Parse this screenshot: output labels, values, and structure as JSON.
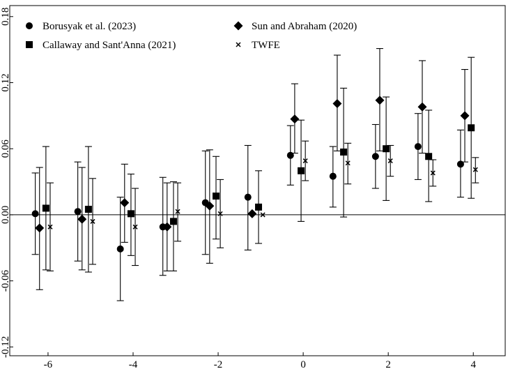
{
  "chart_data": {
    "type": "scatter",
    "title": "",
    "xlabel": "",
    "ylabel": "",
    "x_ticks": [
      -6,
      -4,
      -2,
      0,
      2,
      4
    ],
    "x_tick_labels": [
      "-6",
      "-4",
      "-2",
      "0",
      "2",
      "4"
    ],
    "y_ticks": [
      -0.12,
      -0.06,
      0.0,
      0.06,
      0.12,
      0.18
    ],
    "y_tick_labels": [
      "-0.12",
      "-0.06",
      "0.00",
      "0.06",
      "0.12",
      "0.18"
    ],
    "xlim": [
      -6.9,
      4.75
    ],
    "ylim": [
      -0.128,
      0.19
    ],
    "zero_line": true,
    "grid": false,
    "legend_position": "top",
    "series": [
      {
        "name": "Borusyak et al. (2023)",
        "marker": "circle",
        "offset": -0.3,
        "points": [
          {
            "x": -6,
            "y": 0.001,
            "lo": -0.036,
            "hi": 0.038
          },
          {
            "x": -5,
            "y": 0.003,
            "lo": -0.042,
            "hi": 0.048
          },
          {
            "x": -4,
            "y": -0.031,
            "lo": -0.078,
            "hi": 0.016
          },
          {
            "x": -3,
            "y": -0.011,
            "lo": -0.055,
            "hi": 0.034
          },
          {
            "x": -2,
            "y": 0.011,
            "lo": -0.036,
            "hi": 0.058
          },
          {
            "x": -1,
            "y": 0.016,
            "lo": -0.032,
            "hi": 0.063
          },
          {
            "x": 0,
            "y": 0.054,
            "lo": 0.027,
            "hi": 0.081
          },
          {
            "x": 1,
            "y": 0.035,
            "lo": 0.007,
            "hi": 0.062
          },
          {
            "x": 2,
            "y": 0.053,
            "lo": 0.024,
            "hi": 0.082
          },
          {
            "x": 3,
            "y": 0.062,
            "lo": 0.032,
            "hi": 0.092
          },
          {
            "x": 4,
            "y": 0.046,
            "lo": 0.016,
            "hi": 0.077
          }
        ]
      },
      {
        "name": "Sun and Abraham (2020)",
        "marker": "diamond",
        "offset": -0.2,
        "points": [
          {
            "x": -6,
            "y": -0.012,
            "lo": -0.068,
            "hi": 0.043
          },
          {
            "x": -5,
            "y": -0.004,
            "lo": -0.05,
            "hi": 0.043
          },
          {
            "x": -4,
            "y": 0.011,
            "lo": -0.025,
            "hi": 0.046
          },
          {
            "x": -3,
            "y": -0.011,
            "lo": -0.051,
            "hi": 0.029
          },
          {
            "x": -2,
            "y": 0.008,
            "lo": -0.044,
            "hi": 0.059
          },
          {
            "x": -1,
            "y": 0.001,
            "lo": null,
            "hi": null
          },
          {
            "x": 0,
            "y": 0.087,
            "lo": 0.056,
            "hi": 0.119
          },
          {
            "x": 1,
            "y": 0.101,
            "lo": 0.058,
            "hi": 0.145
          },
          {
            "x": 2,
            "y": 0.104,
            "lo": 0.058,
            "hi": 0.151
          },
          {
            "x": 3,
            "y": 0.098,
            "lo": 0.056,
            "hi": 0.14
          },
          {
            "x": 4,
            "y": 0.09,
            "lo": 0.048,
            "hi": 0.132
          }
        ]
      },
      {
        "name": "Callaway and Sant'Anna (2021)",
        "marker": "square",
        "offset": -0.05,
        "points": [
          {
            "x": -6,
            "y": 0.006,
            "lo": -0.05,
            "hi": 0.062
          },
          {
            "x": -5,
            "y": 0.005,
            "lo": -0.052,
            "hi": 0.062
          },
          {
            "x": -4,
            "y": 0.001,
            "lo": -0.037,
            "hi": 0.037
          },
          {
            "x": -3,
            "y": -0.006,
            "lo": -0.051,
            "hi": 0.03
          },
          {
            "x": -2,
            "y": 0.017,
            "lo": -0.022,
            "hi": 0.053
          },
          {
            "x": -1,
            "y": 0.007,
            "lo": -0.026,
            "hi": 0.04
          },
          {
            "x": 0,
            "y": 0.04,
            "lo": -0.006,
            "hi": 0.086
          },
          {
            "x": 1,
            "y": 0.057,
            "lo": -0.002,
            "hi": 0.115
          },
          {
            "x": 2,
            "y": 0.06,
            "lo": 0.013,
            "hi": 0.107
          },
          {
            "x": 3,
            "y": 0.053,
            "lo": 0.012,
            "hi": 0.095
          },
          {
            "x": 4,
            "y": 0.079,
            "lo": 0.015,
            "hi": 0.143
          }
        ]
      },
      {
        "name": "TWFE",
        "marker": "x",
        "offset": 0.05,
        "points": [
          {
            "x": -6,
            "y": -0.011,
            "lo": -0.051,
            "hi": 0.029
          },
          {
            "x": -5,
            "y": -0.006,
            "lo": -0.045,
            "hi": 0.033
          },
          {
            "x": -4,
            "y": -0.011,
            "lo": -0.046,
            "hi": 0.024
          },
          {
            "x": -3,
            "y": 0.003,
            "lo": -0.024,
            "hi": 0.029
          },
          {
            "x": -2,
            "y": 0.001,
            "lo": -0.03,
            "hi": 0.032
          },
          {
            "x": -1,
            "y": 0.0,
            "lo": null,
            "hi": null
          },
          {
            "x": 0,
            "y": 0.049,
            "lo": 0.031,
            "hi": 0.067
          },
          {
            "x": 1,
            "y": 0.047,
            "lo": 0.028,
            "hi": 0.065
          },
          {
            "x": 2,
            "y": 0.049,
            "lo": 0.035,
            "hi": 0.063
          },
          {
            "x": 3,
            "y": 0.038,
            "lo": 0.026,
            "hi": 0.05
          },
          {
            "x": 4,
            "y": 0.041,
            "lo": 0.029,
            "hi": 0.052
          }
        ]
      }
    ]
  },
  "legend": {
    "items": [
      {
        "label": "Borusyak et al. (2023)",
        "marker": "circle"
      },
      {
        "label": "Sun and Abraham (2020)",
        "marker": "diamond"
      },
      {
        "label": "Callaway and Sant'Anna (2021)",
        "marker": "square"
      },
      {
        "label": "TWFE",
        "marker": "x"
      }
    ]
  },
  "colors": {
    "marker": "#000000",
    "axis": "#000000",
    "background": "#ffffff"
  }
}
